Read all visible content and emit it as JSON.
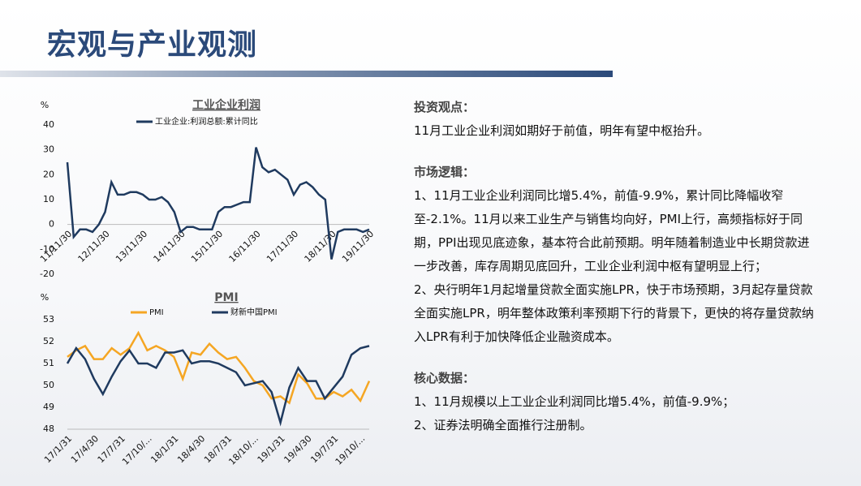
{
  "header": {
    "title": "宏观与产业观测"
  },
  "text": [
    {
      "heading": "投资观点：",
      "paragraphs": [
        "11月工业企业利润如期好于前值，明年有望中枢抬升。"
      ]
    },
    {
      "heading": "市场逻辑：",
      "paragraphs": [
        "1、11月工业企业利润同比增5.4%，前值-9.9%，累计同比降幅收窄至-2.1%。11月以来工业生产与销售均向好，PMI上行，高频指标好于同期，PPI出现见底迹象，基本符合此前预期。明年随着制造业中长期贷款进一步改善，库存周期见底回升，工业企业利润中枢有望明显上行；",
        "2、央行明年1月起增量贷款全面实施LPR，快于市场预期，3月起存量贷款全面实施LPR，明年整体政策利率预期下行的背景下，更快的将存量贷款纳入LPR有利于加快降低企业融资成本。"
      ]
    },
    {
      "heading": "核心数据：",
      "paragraphs": [
        "1、11月规模以上工业企业利润同比增5.4%，前值-9.9%；",
        "2、证券法明确全面推行注册制。"
      ]
    }
  ],
  "chart_data": [
    {
      "type": "line",
      "title": "工业企业利润",
      "y_label": "%",
      "categories": [
        "11/11/30",
        null,
        null,
        null,
        null,
        null,
        "12/11/30",
        null,
        null,
        null,
        null,
        null,
        "13/11/30",
        null,
        null,
        null,
        null,
        null,
        "14/11/30",
        null,
        null,
        null,
        null,
        null,
        "15/11/30",
        null,
        null,
        null,
        null,
        null,
        "16/11/30",
        null,
        null,
        null,
        null,
        null,
        "17/11/30",
        null,
        null,
        null,
        null,
        null,
        "18/11/30",
        null,
        null,
        null,
        null,
        null,
        "19/11/30"
      ],
      "series": [
        {
          "name": "工业企业:利润总额:累计同比",
          "color": "#1f3a5f",
          "values": [
            25,
            -5,
            -2,
            -2,
            -3,
            0,
            5,
            17,
            12,
            12,
            13,
            13,
            12,
            10,
            10,
            11,
            9,
            5,
            -3,
            -1,
            -1,
            -2,
            -2,
            -2,
            5,
            7,
            7,
            8,
            9,
            9,
            31,
            23,
            21,
            22,
            20,
            18,
            12,
            16,
            17,
            15,
            12,
            10,
            -14,
            -3,
            -2,
            -2,
            -2,
            -3,
            -2
          ]
        }
      ],
      "ylim": [
        -20,
        40
      ],
      "yticks": [
        -20,
        -10,
        0,
        10,
        20,
        30,
        40
      ]
    },
    {
      "type": "line",
      "title": "PMI",
      "y_label": "%",
      "categories": [
        "17/1/31",
        null,
        null,
        "17/4/30",
        null,
        null,
        "17/7/31",
        null,
        null,
        "17/10/...",
        null,
        null,
        "18/1/31",
        null,
        null,
        "18/4/30",
        null,
        null,
        "18/7/31",
        null,
        null,
        "18/10/...",
        null,
        null,
        "19/1/31",
        null,
        null,
        "19/4/30",
        null,
        null,
        "19/7/31",
        null,
        null,
        "19/10/...",
        null
      ],
      "series": [
        {
          "name": "PMI",
          "color": "#f5a623",
          "values": [
            51.3,
            51.6,
            51.8,
            51.2,
            51.2,
            51.7,
            51.4,
            51.7,
            52.4,
            51.6,
            51.8,
            51.6,
            51.3,
            50.3,
            51.5,
            51.4,
            51.9,
            51.5,
            51.2,
            51.3,
            50.8,
            50.2,
            50.0,
            49.4,
            49.5,
            49.2,
            50.5,
            50.1,
            49.4,
            49.4,
            49.7,
            49.5,
            49.8,
            49.3,
            50.2
          ]
        },
        {
          "name": "财新中国PMI",
          "color": "#1f3a5f",
          "values": [
            51.0,
            51.7,
            51.2,
            50.3,
            49.6,
            50.4,
            51.1,
            51.6,
            51.0,
            51.0,
            50.8,
            51.5,
            51.5,
            51.6,
            51.0,
            51.1,
            51.1,
            51.0,
            50.8,
            50.6,
            50.0,
            50.1,
            50.2,
            49.7,
            48.3,
            49.9,
            50.8,
            50.2,
            50.2,
            49.4,
            49.9,
            50.4,
            51.4,
            51.7,
            51.8
          ]
        }
      ],
      "ylim": [
        48,
        53
      ],
      "yticks": [
        48,
        49,
        50,
        51,
        52,
        53
      ]
    }
  ]
}
